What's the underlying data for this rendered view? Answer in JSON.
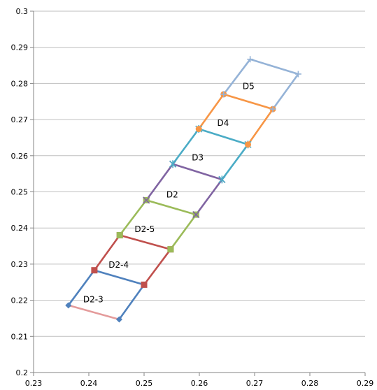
{
  "chart_data": {
    "type": "line",
    "title": "",
    "xlabel": "",
    "ylabel": "",
    "xlim": [
      0.23,
      0.29
    ],
    "ylim": [
      0.2,
      0.3
    ],
    "grid": "horizontal",
    "x_tick_labels": [
      "0.23",
      "0.24",
      "0.25",
      "0.26",
      "0.27",
      "0.28",
      "0.29"
    ],
    "y_tick_labels": [
      "0.2",
      "0.21",
      "0.22",
      "0.23",
      "0.24",
      "0.25",
      "0.26",
      "0.27",
      "0.28",
      "0.29",
      "0.3"
    ],
    "series": [
      {
        "color": "#4f81bd",
        "marker": "diamond",
        "points": [
          [
            0.2455,
            0.2147
          ],
          [
            0.25,
            0.2243
          ],
          [
            0.241,
            0.2283
          ],
          [
            0.2363,
            0.2186
          ]
        ]
      },
      {
        "color": "#e49b9b",
        "marker": "none",
        "points": [
          [
            0.2363,
            0.2186
          ],
          [
            0.2455,
            0.2147
          ]
        ]
      },
      {
        "color": "#c0504d",
        "marker": "square",
        "points": [
          [
            0.25,
            0.2243
          ],
          [
            0.2548,
            0.2341
          ],
          [
            0.2456,
            0.238
          ],
          [
            0.241,
            0.2283
          ]
        ]
      },
      {
        "color": "#9bbb59",
        "marker": "square",
        "points": [
          [
            0.2548,
            0.2341
          ],
          [
            0.2594,
            0.2437
          ],
          [
            0.2504,
            0.2477
          ],
          [
            0.2456,
            0.238
          ]
        ]
      },
      {
        "color": "#8064a2",
        "marker": "x",
        "points": [
          [
            0.2594,
            0.2437
          ],
          [
            0.2641,
            0.2534
          ],
          [
            0.2552,
            0.2577
          ],
          [
            0.2504,
            0.2477
          ]
        ]
      },
      {
        "color": "#4bacc6",
        "marker": "star",
        "points": [
          [
            0.2641,
            0.2534
          ],
          [
            0.2688,
            0.2631
          ],
          [
            0.2599,
            0.2674
          ],
          [
            0.2552,
            0.2577
          ]
        ]
      },
      {
        "color": "#f79646",
        "marker": "circle",
        "points": [
          [
            0.2688,
            0.2631
          ],
          [
            0.2733,
            0.2729
          ],
          [
            0.2644,
            0.277
          ],
          [
            0.2599,
            0.2674
          ]
        ]
      },
      {
        "color": "#95b3d7",
        "marker": "plus",
        "points": [
          [
            0.2733,
            0.2729
          ],
          [
            0.2779,
            0.2826
          ],
          [
            0.2692,
            0.2867
          ],
          [
            0.2644,
            0.277
          ]
        ]
      }
    ],
    "annotations": [
      {
        "text": "D2-3",
        "x": 0.2408,
        "y": 0.2194
      },
      {
        "text": "D2-4",
        "x": 0.2454,
        "y": 0.229
      },
      {
        "text": "D2-5",
        "x": 0.2501,
        "y": 0.2389
      },
      {
        "text": "D2",
        "x": 0.2551,
        "y": 0.2485
      },
      {
        "text": "D3",
        "x": 0.2597,
        "y": 0.2587
      },
      {
        "text": "D4",
        "x": 0.2643,
        "y": 0.2683
      },
      {
        "text": "D5",
        "x": 0.2689,
        "y": 0.2784
      }
    ]
  }
}
